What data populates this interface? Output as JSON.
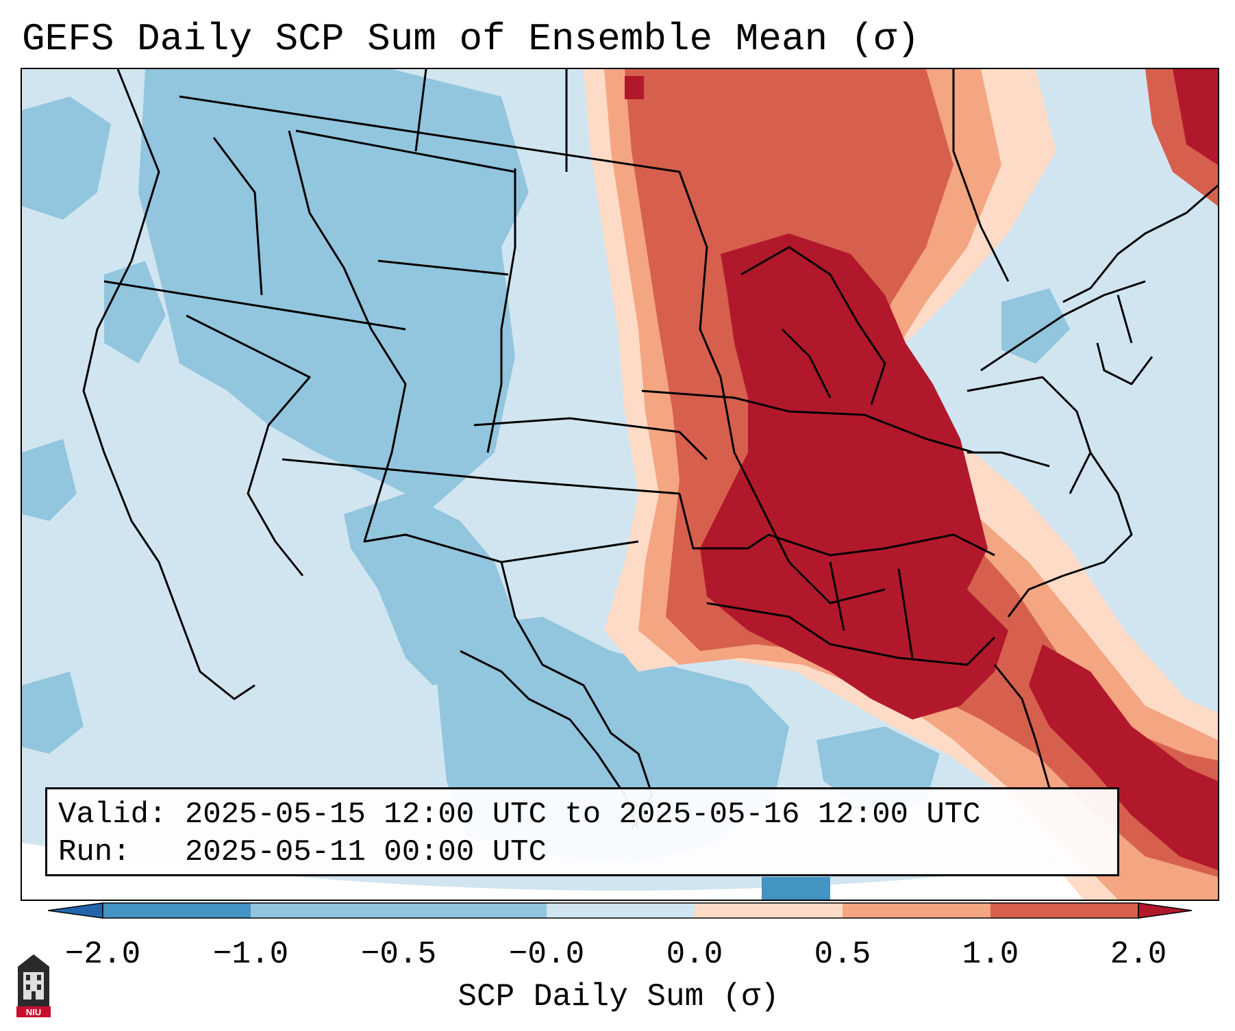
{
  "title": "GEFS Daily SCP Sum of Ensemble Mean (σ)",
  "info_box": {
    "valid_label": "Valid:",
    "valid_value": "2025-05-15 12:00 UTC to 2025-05-16 12:00 UTC",
    "run_label": "Run:",
    "run_value": "2025-05-11 00:00 UTC"
  },
  "colorbar": {
    "label": "SCP Daily Sum (σ)",
    "ticks": [
      "−2.0",
      "−1.0",
      "−0.5",
      "−0.0",
      "0.0",
      "0.5",
      "1.0",
      "2.0"
    ],
    "colors": [
      "#4393c3",
      "#92c5de",
      "#d1e5f0",
      "#fddbc7",
      "#f4a582",
      "#d6604d",
      "#b2182b"
    ],
    "extend": "both"
  },
  "map": {
    "region": "CONUS",
    "category_colors": {
      "strong_negative": "#4393c3",
      "negative": "#92c5de",
      "weak_negative": "#d1e5f0",
      "weak_positive": "#fddbc7",
      "positive": "#f4a582",
      "strong_positive": "#d6604d",
      "max_positive": "#b2182b"
    }
  },
  "logo": {
    "text": "NIU",
    "icon": "university-tower-icon",
    "color": "#c8102e"
  }
}
